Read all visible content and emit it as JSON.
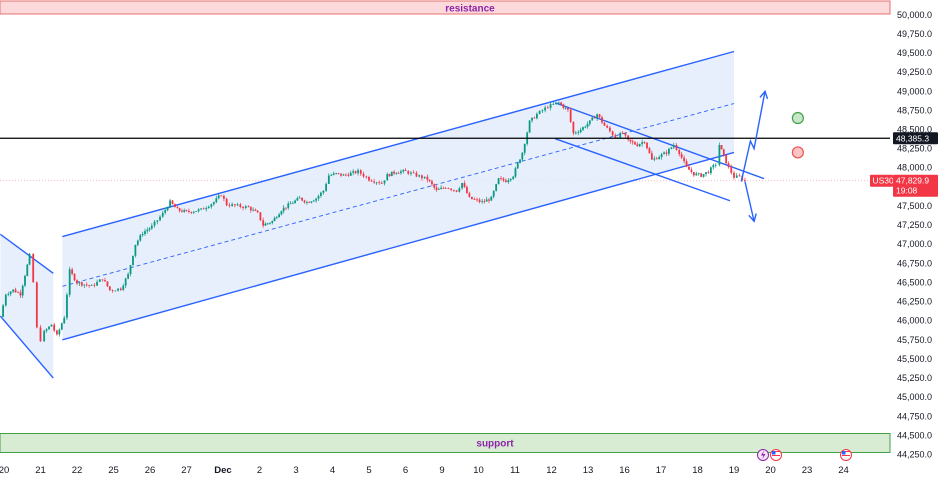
{
  "chart_data": {
    "type": "candlestick",
    "symbol": "US30",
    "y_axis": {
      "range": [
        44150,
        50150
      ],
      "ticks": [
        50000,
        49750,
        49500,
        49250,
        49000,
        48750,
        48500,
        48250,
        48000,
        47750,
        47500,
        47250,
        47000,
        46750,
        46500,
        46250,
        46000,
        45750,
        45500,
        45250,
        45000,
        44750,
        44500,
        44250
      ],
      "tick_labels": [
        "50,000.0",
        "49,750.0",
        "49,500.0",
        "49,250.0",
        "49,000.0",
        "48,750.0",
        "48,500.0",
        "48,250.0",
        "48,000.0",
        "47,750.0",
        "47,500.0",
        "47,250.0",
        "47,000.0",
        "46,750.0",
        "46,500.0",
        "46,250.0",
        "46,000.0",
        "45,750.0",
        "45,500.0",
        "45,250.0",
        "45,000.0",
        "44,750.0",
        "44,500.0",
        "44,250.0"
      ]
    },
    "x_axis": {
      "labels": [
        {
          "label": "20",
          "pos": 0
        },
        {
          "label": "21",
          "pos": 1
        },
        {
          "label": "22",
          "pos": 2
        },
        {
          "label": "25",
          "pos": 3
        },
        {
          "label": "26",
          "pos": 4
        },
        {
          "label": "27",
          "pos": 5
        },
        {
          "label": "Dec",
          "pos": 6
        },
        {
          "label": "2",
          "pos": 7
        },
        {
          "label": "3",
          "pos": 8
        },
        {
          "label": "4",
          "pos": 9
        },
        {
          "label": "5",
          "pos": 10
        },
        {
          "label": "6",
          "pos": 11
        },
        {
          "label": "9",
          "pos": 12
        },
        {
          "label": "10",
          "pos": 13
        },
        {
          "label": "11",
          "pos": 14
        },
        {
          "label": "12",
          "pos": 15
        },
        {
          "label": "13",
          "pos": 16
        },
        {
          "label": "16",
          "pos": 17
        },
        {
          "label": "17",
          "pos": 18
        },
        {
          "label": "18",
          "pos": 19
        },
        {
          "label": "19",
          "pos": 20
        },
        {
          "label": "20",
          "pos": 21
        },
        {
          "label": "23",
          "pos": 22
        },
        {
          "label": "24",
          "pos": 23
        }
      ]
    },
    "resistance_zone": {
      "label": "resistance",
      "low": 50050,
      "high": 50250
    },
    "support_zone": {
      "label": "support",
      "low": 44260,
      "high": 44520
    },
    "horizontal_level": {
      "value": 48385.3,
      "label": "48,385.3"
    },
    "current_price": {
      "symbol": "US30",
      "value": 47829.9,
      "label": "47,829.9",
      "countdown": "19:08"
    },
    "candle_path": [
      [
        -0.1,
        46050
      ],
      [
        0.05,
        46350
      ],
      [
        0.25,
        46400
      ],
      [
        0.45,
        46350
      ],
      [
        0.7,
        46850
      ],
      [
        0.8,
        46500
      ],
      [
        0.9,
        45900
      ],
      [
        1.0,
        45750
      ],
      [
        1.1,
        45850
      ],
      [
        1.3,
        45950
      ],
      [
        1.45,
        45800
      ],
      [
        1.65,
        46050
      ],
      [
        1.8,
        46650
      ],
      [
        2.0,
        46500
      ],
      [
        2.4,
        46450
      ],
      [
        2.7,
        46550
      ],
      [
        2.9,
        46400
      ],
      [
        3.2,
        46420
      ],
      [
        3.4,
        46600
      ],
      [
        3.6,
        47000
      ],
      [
        3.8,
        47150
      ],
      [
        4.05,
        47230
      ],
      [
        4.35,
        47400
      ],
      [
        4.55,
        47550
      ],
      [
        4.75,
        47450
      ],
      [
        5.0,
        47420
      ],
      [
        5.4,
        47450
      ],
      [
        5.75,
        47550
      ],
      [
        5.95,
        47650
      ],
      [
        6.1,
        47520
      ],
      [
        6.4,
        47500
      ],
      [
        6.7,
        47480
      ],
      [
        6.95,
        47400
      ],
      [
        7.1,
        47250
      ],
      [
        7.35,
        47300
      ],
      [
        7.6,
        47450
      ],
      [
        7.85,
        47530
      ],
      [
        8.1,
        47600
      ],
      [
        8.3,
        47550
      ],
      [
        8.55,
        47600
      ],
      [
        8.75,
        47700
      ],
      [
        8.9,
        47900
      ],
      [
        9.1,
        47920
      ],
      [
        9.3,
        47900
      ],
      [
        9.7,
        47950
      ],
      [
        10.0,
        47850
      ],
      [
        10.35,
        47800
      ],
      [
        10.5,
        47900
      ],
      [
        10.75,
        47950
      ],
      [
        11.0,
        47950
      ],
      [
        11.3,
        47900
      ],
      [
        11.6,
        47850
      ],
      [
        11.85,
        47700
      ],
      [
        12.1,
        47750
      ],
      [
        12.4,
        47700
      ],
      [
        12.55,
        47800
      ],
      [
        12.75,
        47600
      ],
      [
        13.1,
        47550
      ],
      [
        13.35,
        47600
      ],
      [
        13.55,
        47850
      ],
      [
        13.75,
        47830
      ],
      [
        13.95,
        47900
      ],
      [
        14.2,
        48200
      ],
      [
        14.4,
        48600
      ],
      [
        14.6,
        48700
      ],
      [
        14.9,
        48800
      ],
      [
        15.2,
        48850
      ],
      [
        15.45,
        48750
      ],
      [
        15.6,
        48450
      ],
      [
        15.8,
        48500
      ],
      [
        16.05,
        48600
      ],
      [
        16.25,
        48700
      ],
      [
        16.45,
        48550
      ],
      [
        16.75,
        48400
      ],
      [
        16.95,
        48450
      ],
      [
        17.1,
        48350
      ],
      [
        17.35,
        48300
      ],
      [
        17.55,
        48350
      ],
      [
        17.75,
        48100
      ],
      [
        17.95,
        48150
      ],
      [
        18.15,
        48200
      ],
      [
        18.35,
        48300
      ],
      [
        18.5,
        48200
      ],
      [
        18.7,
        48000
      ],
      [
        18.9,
        47920
      ],
      [
        19.1,
        47900
      ],
      [
        19.3,
        47950
      ],
      [
        19.5,
        48050
      ],
      [
        19.6,
        48300
      ],
      [
        19.72,
        48150
      ],
      [
        19.85,
        48000
      ],
      [
        20.0,
        47880
      ],
      [
        20.15,
        47880
      ],
      [
        20.3,
        47830
      ]
    ],
    "ascending_channel": {
      "start_pos": 1.6,
      "end_pos": 20.0,
      "upper_start": 47100,
      "upper_end": 49520,
      "lower_start": 45750,
      "lower_end": 48200,
      "midline_start": 46450,
      "midline_end": 48840
    },
    "prior_descending_channel": {
      "start_pos": -0.1,
      "end_pos": 1.35,
      "upper_start": 47130,
      "upper_end": 46620,
      "lower_start": 46060,
      "lower_end": 45250
    },
    "descending_channel": {
      "start_pos": 15.1,
      "end_pos": 20.0,
      "upper_start": 48850,
      "upper_end": 48000,
      "lower_start": 48380,
      "lower_end": 47550
    },
    "scenario_arrows": [
      {
        "direction": "up",
        "points": [
          [
            20.2,
            47820
          ],
          [
            20.45,
            48350
          ],
          [
            20.55,
            48250
          ],
          [
            20.85,
            49000
          ]
        ]
      },
      {
        "direction": "down",
        "points": [
          [
            20.3,
            47820
          ],
          [
            20.55,
            47300
          ]
        ]
      }
    ],
    "markers": [
      {
        "color": "#43a047",
        "pos": 21.75,
        "value": 48650
      },
      {
        "color": "#ef5350",
        "pos": 21.75,
        "value": 48200
      }
    ],
    "event_icons": [
      "lightning-event",
      "us-flag-event",
      "us-flag-event"
    ],
    "colors": {
      "bull": "#089981",
      "bear": "#f23645",
      "channel": "#2962ff",
      "channel_fill": "#e3ecfb",
      "resistance_fill": "#fcd9da",
      "support_fill": "#d7ecd3",
      "support_border": "#43a047",
      "price_tag": "#f23645",
      "level_line": "#000000"
    }
  }
}
